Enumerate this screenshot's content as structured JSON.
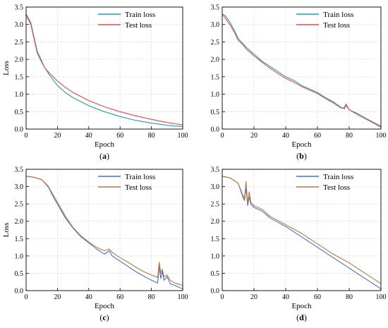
{
  "chart_data": [
    {
      "type": "line",
      "panel_label": "(a)",
      "xlabel": "Epoch",
      "ylabel": "Loss",
      "xlim": [
        0,
        100
      ],
      "ylim": [
        0,
        3.5
      ],
      "xticks": [
        "0",
        "20",
        "40",
        "60",
        "80",
        "100"
      ],
      "yticks": [
        "0.0",
        "0.5",
        "1.0",
        "1.5",
        "2.0",
        "2.5",
        "3.0",
        "3.5"
      ],
      "grid": true,
      "legend": "top-right",
      "series": [
        {
          "name": "Train loss",
          "color": "#1f9fb8",
          "x": [
            0,
            1,
            3,
            5,
            7,
            9,
            12,
            15,
            20,
            25,
            30,
            40,
            50,
            60,
            70,
            80,
            90,
            100
          ],
          "y": [
            3.3,
            3.22,
            3.05,
            2.65,
            2.25,
            2.05,
            1.75,
            1.55,
            1.25,
            1.05,
            0.9,
            0.67,
            0.5,
            0.36,
            0.25,
            0.17,
            0.11,
            0.07
          ]
        },
        {
          "name": "Test loss",
          "color": "#f04848",
          "x": [
            0,
            1,
            3,
            5,
            7,
            9,
            12,
            15,
            20,
            25,
            30,
            40,
            50,
            60,
            70,
            80,
            90,
            100
          ],
          "y": [
            3.3,
            3.18,
            3.0,
            2.6,
            2.2,
            2.0,
            1.75,
            1.6,
            1.38,
            1.2,
            1.05,
            0.82,
            0.64,
            0.5,
            0.38,
            0.28,
            0.19,
            0.12
          ]
        }
      ]
    },
    {
      "type": "line",
      "panel_label": "(b)",
      "xlabel": "Epoch",
      "ylabel": "",
      "xlim": [
        0,
        100
      ],
      "ylim": [
        0,
        3.5
      ],
      "xticks": [
        "0",
        "20",
        "40",
        "60",
        "80",
        "100"
      ],
      "yticks": [
        "0.0",
        "0.5",
        "1.0",
        "1.5",
        "2.0",
        "2.5",
        "3.0",
        "3.5"
      ],
      "grid": true,
      "legend": "top-right",
      "series": [
        {
          "name": "Train loss",
          "color": "#1f9fb8",
          "x": [
            0,
            2,
            5,
            8,
            10,
            13,
            15,
            20,
            25,
            30,
            35,
            40,
            45,
            50,
            55,
            60,
            65,
            70,
            75,
            77,
            78,
            80,
            85,
            90,
            95,
            100
          ],
          "y": [
            3.3,
            3.25,
            3.05,
            2.8,
            2.6,
            2.45,
            2.35,
            2.15,
            1.95,
            1.8,
            1.65,
            1.5,
            1.4,
            1.25,
            1.15,
            1.05,
            0.9,
            0.78,
            0.62,
            0.58,
            0.68,
            0.55,
            0.42,
            0.3,
            0.18,
            0.05
          ]
        },
        {
          "name": "Test loss",
          "color": "#f04848",
          "x": [
            0,
            2,
            5,
            8,
            10,
            13,
            15,
            20,
            25,
            30,
            35,
            40,
            45,
            50,
            55,
            60,
            65,
            70,
            75,
            77,
            78,
            80,
            85,
            90,
            95,
            100
          ],
          "y": [
            3.3,
            3.18,
            2.98,
            2.75,
            2.55,
            2.42,
            2.3,
            2.1,
            1.92,
            1.75,
            1.6,
            1.45,
            1.35,
            1.22,
            1.12,
            1.02,
            0.88,
            0.75,
            0.6,
            0.62,
            0.72,
            0.55,
            0.45,
            0.32,
            0.2,
            0.08
          ]
        }
      ]
    },
    {
      "type": "line",
      "panel_label": "(c)",
      "xlabel": "Epoch",
      "ylabel": "Loss",
      "xlim": [
        0,
        100
      ],
      "ylim": [
        0,
        3.5
      ],
      "xticks": [
        "0",
        "20",
        "40",
        "60",
        "80",
        "100"
      ],
      "yticks": [
        "0.0",
        "0.5",
        "1.0",
        "1.5",
        "2.0",
        "2.5",
        "3.0",
        "3.5"
      ],
      "grid": true,
      "legend": "top-right",
      "series": [
        {
          "name": "Train loss",
          "color": "#4a6fcf",
          "x": [
            0,
            5,
            10,
            14,
            18,
            20,
            25,
            30,
            35,
            40,
            45,
            50,
            53,
            55,
            60,
            65,
            70,
            75,
            80,
            84,
            85,
            86,
            87,
            88,
            90,
            92,
            95,
            100
          ],
          "y": [
            3.3,
            3.27,
            3.2,
            3.0,
            2.65,
            2.5,
            2.1,
            1.8,
            1.55,
            1.38,
            1.2,
            1.05,
            1.15,
            1.0,
            0.85,
            0.7,
            0.55,
            0.42,
            0.3,
            0.22,
            0.7,
            0.35,
            0.55,
            0.3,
            0.4,
            0.2,
            0.15,
            0.05
          ]
        },
        {
          "name": "Test loss",
          "color": "#b8783a",
          "x": [
            0,
            5,
            10,
            14,
            18,
            20,
            25,
            30,
            35,
            40,
            45,
            50,
            53,
            55,
            60,
            65,
            70,
            75,
            80,
            84,
            85,
            86,
            87,
            88,
            90,
            92,
            95,
            100
          ],
          "y": [
            3.3,
            3.27,
            3.2,
            3.02,
            2.7,
            2.55,
            2.15,
            1.82,
            1.58,
            1.4,
            1.25,
            1.15,
            1.2,
            1.1,
            0.95,
            0.82,
            0.68,
            0.55,
            0.45,
            0.38,
            0.82,
            0.5,
            0.62,
            0.4,
            0.45,
            0.3,
            0.22,
            0.15
          ]
        }
      ]
    },
    {
      "type": "line",
      "panel_label": "(d)",
      "xlabel": "Epoch",
      "ylabel": "",
      "xlim": [
        0,
        100
      ],
      "ylim": [
        0,
        3.5
      ],
      "xticks": [
        "0",
        "20",
        "40",
        "60",
        "80",
        "100"
      ],
      "yticks": [
        "0.0",
        "0.5",
        "1.0",
        "1.5",
        "2.0",
        "2.5",
        "3.0",
        "3.5"
      ],
      "grid": true,
      "legend": "top-right",
      "series": [
        {
          "name": "Train loss",
          "color": "#4a6fcf",
          "x": [
            0,
            5,
            10,
            13,
            14,
            15,
            16,
            17,
            18,
            20,
            25,
            30,
            40,
            50,
            60,
            70,
            80,
            90,
            95,
            100
          ],
          "y": [
            3.3,
            3.25,
            3.1,
            2.7,
            2.6,
            2.95,
            2.45,
            2.7,
            2.5,
            2.4,
            2.3,
            2.1,
            1.85,
            1.55,
            1.25,
            0.95,
            0.65,
            0.35,
            0.2,
            0.05
          ]
        },
        {
          "name": "Test loss",
          "color": "#b8783a",
          "x": [
            0,
            5,
            10,
            13,
            14,
            15,
            16,
            17,
            18,
            20,
            25,
            30,
            40,
            50,
            60,
            70,
            80,
            90,
            95,
            100
          ],
          "y": [
            3.3,
            3.25,
            3.1,
            2.75,
            2.65,
            3.15,
            2.5,
            2.85,
            2.55,
            2.45,
            2.35,
            2.15,
            1.9,
            1.65,
            1.35,
            1.05,
            0.8,
            0.5,
            0.35,
            0.2
          ]
        }
      ]
    }
  ]
}
